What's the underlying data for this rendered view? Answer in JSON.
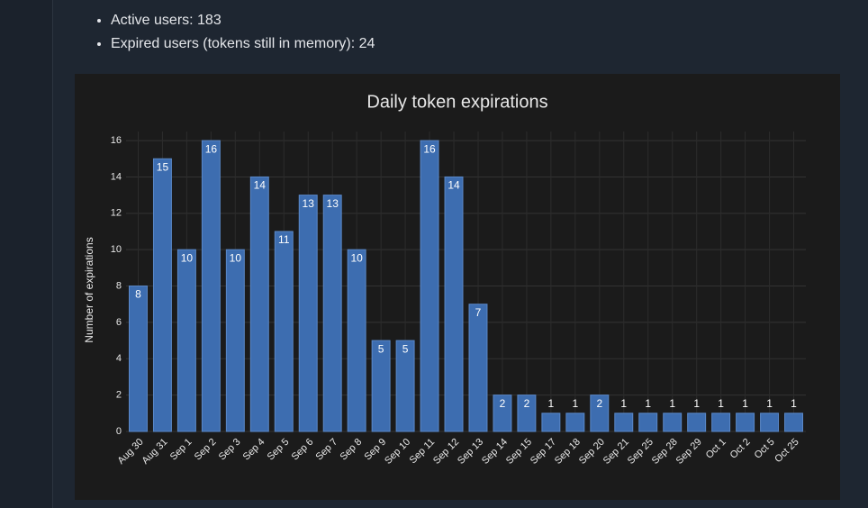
{
  "bullets": [
    "Active users: 183",
    "Expired users (tokens still in memory): 24"
  ],
  "chart_data": {
    "type": "bar",
    "title": "Daily token expirations",
    "y_label": "Number of expirations",
    "categories": [
      "Aug 30",
      "Aug 31",
      "Sep 1",
      "Sep 2",
      "Sep 3",
      "Sep 4",
      "Sep 5",
      "Sep 6",
      "Sep 7",
      "Sep 8",
      "Sep 9",
      "Sep 10",
      "Sep 11",
      "Sep 12",
      "Sep 13",
      "Sep 14",
      "Sep 15",
      "Sep 17",
      "Sep 18",
      "Sep 20",
      "Sep 21",
      "Sep 25",
      "Sep 28",
      "Sep 29",
      "Oct 1",
      "Oct 2",
      "Oct 5",
      "Oct 25"
    ],
    "values": [
      8,
      15,
      10,
      16,
      10,
      14,
      11,
      13,
      13,
      10,
      5,
      5,
      16,
      14,
      7,
      2,
      2,
      1,
      1,
      2,
      1,
      1,
      1,
      1,
      1,
      1,
      1,
      1
    ],
    "color": "#3d6db0",
    "ylim": [
      0,
      16.5
    ],
    "yticks": [
      0,
      2,
      4,
      6,
      8,
      10,
      12,
      14,
      16
    ],
    "grid": true
  }
}
